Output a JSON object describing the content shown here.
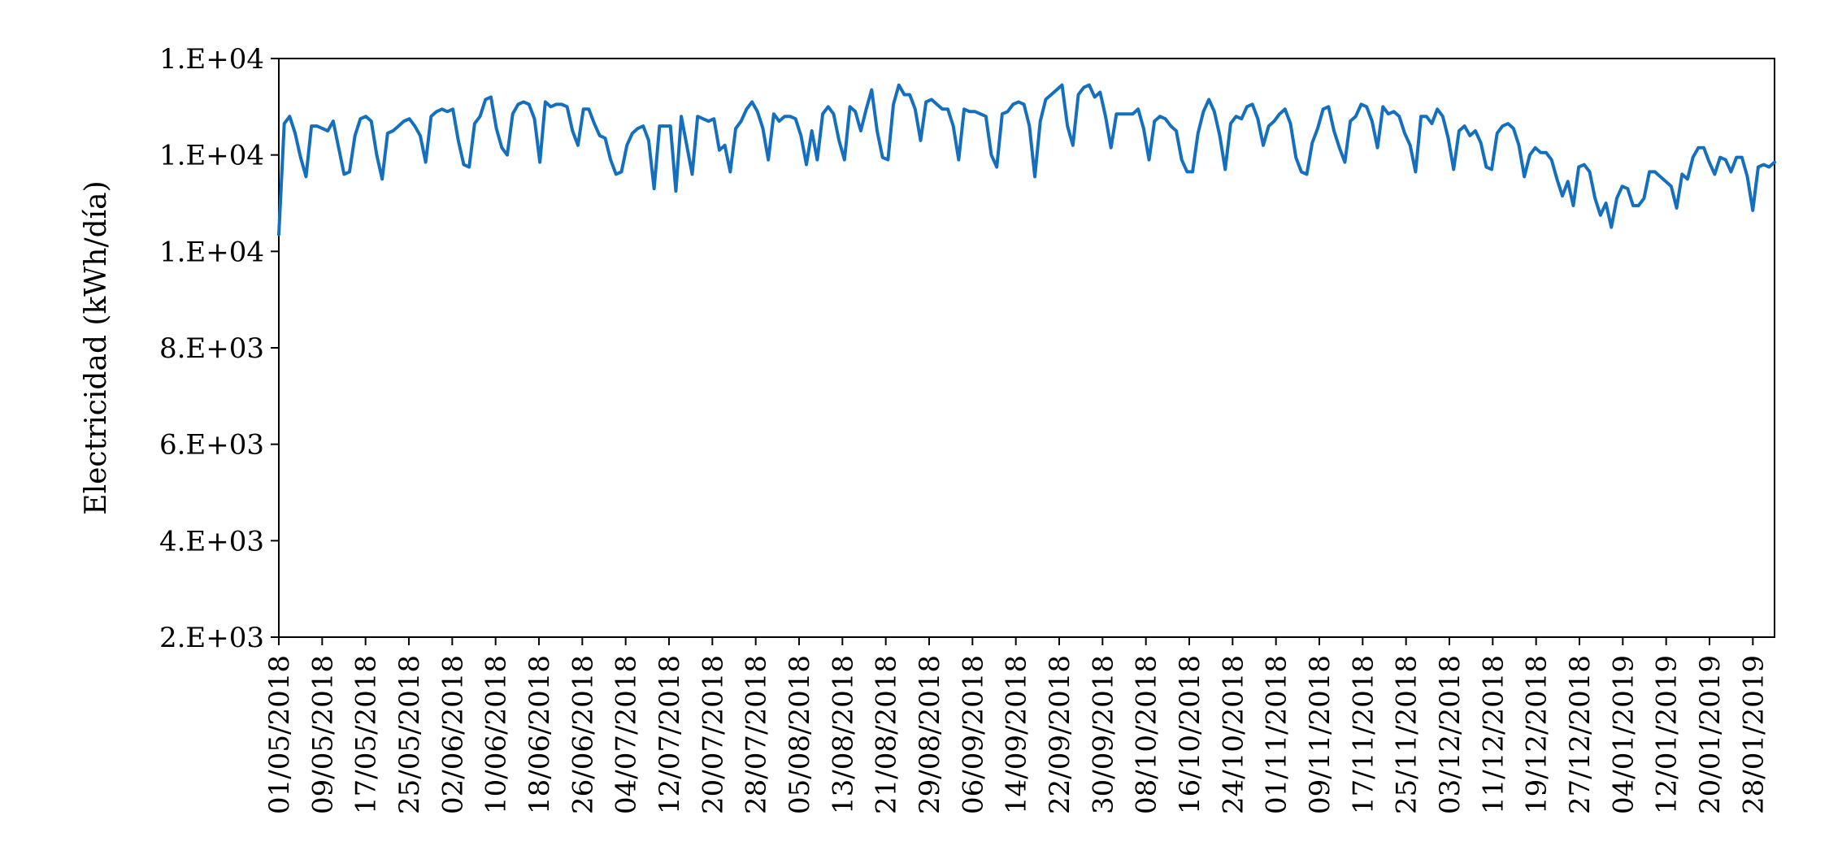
{
  "chart_data": {
    "type": "line",
    "title": "",
    "xlabel": "",
    "ylabel": "Electricidad (kWh/día)",
    "x_start": "01/05/2018",
    "x_end": "01/02/2019",
    "ylim": [
      2000,
      14000
    ],
    "yticks": [
      {
        "value": 2000,
        "label": "2.E+03"
      },
      {
        "value": 4000,
        "label": "4.E+03"
      },
      {
        "value": 6000,
        "label": "6.E+03"
      },
      {
        "value": 8000,
        "label": "8.E+03"
      },
      {
        "value": 10000,
        "label": "1.E+04"
      },
      {
        "value": 12000,
        "label": "1.E+04"
      },
      {
        "value": 14000,
        "label": "1.E+04"
      }
    ],
    "xticks": [
      "01/05/2018",
      "09/05/2018",
      "17/05/2018",
      "25/05/2018",
      "02/06/2018",
      "10/06/2018",
      "18/06/2018",
      "26/06/2018",
      "04/07/2018",
      "12/07/2018",
      "20/07/2018",
      "28/07/2018",
      "05/08/2018",
      "13/08/2018",
      "21/08/2018",
      "29/08/2018",
      "06/09/2018",
      "14/09/2018",
      "22/09/2018",
      "30/09/2018",
      "08/10/2018",
      "16/10/2018",
      "24/10/2018",
      "01/11/2018",
      "09/11/2018",
      "17/11/2018",
      "25/11/2018",
      "03/12/2018",
      "11/12/2018",
      "19/12/2018",
      "27/12/2018",
      "04/01/2019",
      "12/01/2019",
      "20/01/2019",
      "28/01/2019"
    ],
    "grid": false,
    "color": "#1470be",
    "series": [
      {
        "values": [
          10350,
          12650,
          12800,
          12450,
          11950,
          11550,
          12600,
          12600,
          12550,
          12500,
          12700,
          12150,
          11600,
          11650,
          12400,
          12750,
          12800,
          12700,
          12000,
          11500,
          12450,
          12500,
          12600,
          12700,
          12750,
          12600,
          12400,
          11850,
          12800,
          12900,
          12950,
          12900,
          12950,
          12300,
          11800,
          11750,
          12650,
          12800,
          13150,
          13200,
          12550,
          12150,
          12000,
          12850,
          13050,
          13100,
          13050,
          12750,
          11850,
          13100,
          13000,
          13050,
          13050,
          13000,
          12500,
          12200,
          12950,
          12950,
          12650,
          12400,
          12350,
          11900,
          11600,
          11650,
          12200,
          12450,
          12550,
          12600,
          12300,
          11300,
          12600,
          12600,
          12600,
          11250,
          12800,
          12200,
          11600,
          12800,
          12750,
          12700,
          12750,
          12100,
          12200,
          11650,
          12550,
          12700,
          12950,
          13100,
          12900,
          12550,
          11900,
          12850,
          12700,
          12800,
          12800,
          12750,
          12400,
          11800,
          12500,
          11900,
          12850,
          13000,
          12850,
          12300,
          11900,
          13000,
          12900,
          12500,
          12950,
          13350,
          12500,
          11950,
          11900,
          13050,
          13450,
          13250,
          13250,
          12950,
          12300,
          13100,
          13150,
          13050,
          12950,
          12950,
          12600,
          11900,
          12950,
          12900,
          12900,
          12850,
          12800,
          12000,
          11750,
          12850,
          12900,
          13050,
          13100,
          13050,
          12600,
          11550,
          12700,
          13150,
          13250,
          13350,
          13450,
          12600,
          12200,
          13250,
          13400,
          13450,
          13200,
          13300,
          12800,
          12150,
          12850,
          12850,
          12850,
          12850,
          12950,
          12550,
          11900,
          12700,
          12800,
          12750,
          12600,
          12500,
          11900,
          11650,
          11650,
          12450,
          12900,
          13150,
          12900,
          12400,
          11700,
          12650,
          12800,
          12750,
          13000,
          13050,
          12750,
          12200,
          12600,
          12700,
          12850,
          12950,
          12650,
          11950,
          11650,
          11600,
          12250,
          12550,
          12950,
          13000,
          12500,
          12150,
          11850,
          12700,
          12800,
          13050,
          13000,
          12700,
          12150,
          13000,
          12850,
          12900,
          12800,
          12450,
          12200,
          11650,
          12800,
          12800,
          12650,
          12950,
          12800,
          12350,
          11700,
          12500,
          12600,
          12400,
          12500,
          12250,
          11750,
          11700,
          12450,
          12600,
          12650,
          12550,
          12200,
          11550,
          12000,
          12150,
          12050,
          12050,
          11900,
          11500,
          11150,
          11450,
          10950,
          11750,
          11800,
          11650,
          11100,
          10750,
          11000,
          10500,
          11100,
          11350,
          11300,
          10950,
          10950,
          11100,
          11650,
          11650,
          11550,
          11450,
          11350,
          10900,
          11600,
          11500,
          11950,
          12150,
          12150,
          11850,
          11600,
          11950,
          11900,
          11650,
          11950,
          11950,
          11550,
          10850,
          11750,
          11800,
          11750,
          11850
        ]
      }
    ]
  }
}
